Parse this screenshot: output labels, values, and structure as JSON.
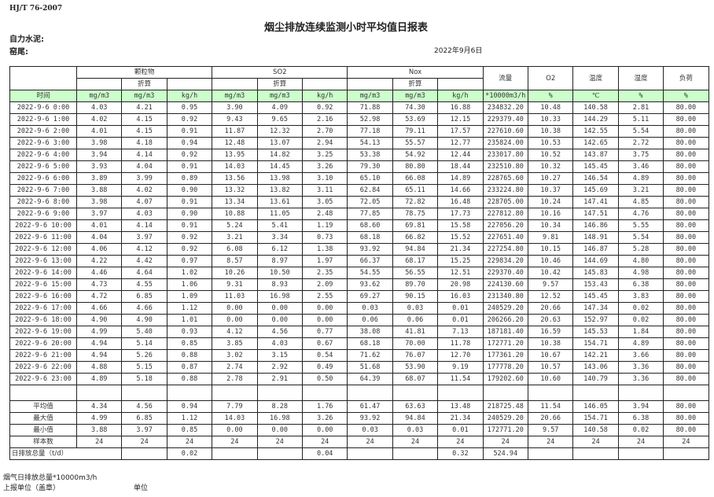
{
  "header": {
    "standard": "HJ/T  76-2007",
    "title": "烟尘排放连续监测小时平均值日报表",
    "company_label": "自力水泥:",
    "kiln_label": "窑尾:",
    "date": "2022年9月6日"
  },
  "table": {
    "groups": [
      "颗粒物",
      "SO2",
      "Nox"
    ],
    "converted_label": "折算",
    "single_columns": [
      "流量",
      "O2",
      "温度",
      "湿度",
      "负荷"
    ],
    "time_label": "时间",
    "units": [
      "mg/m3",
      "mg/m3",
      "kg/h",
      "mg/m3",
      "mg/m3",
      "kg/h",
      "mg/m3",
      "mg/m3",
      "kg/h",
      "*10000m3/h",
      "%",
      "℃",
      "%",
      "%"
    ],
    "rows": [
      [
        "2022-9-6 0:00",
        "4.03",
        "4.21",
        "0.95",
        "3.90",
        "4.09",
        "0.92",
        "71.88",
        "74.30",
        "16.88",
        "234832.20",
        "10.48",
        "140.58",
        "2.81",
        "80.00"
      ],
      [
        "2022-9-6 1:00",
        "4.02",
        "4.15",
        "0.92",
        "9.43",
        "9.65",
        "2.16",
        "52.98",
        "53.69",
        "12.15",
        "229379.40",
        "10.33",
        "144.29",
        "5.11",
        "80.00"
      ],
      [
        "2022-9-6 2:00",
        "4.01",
        "4.15",
        "0.91",
        "11.87",
        "12.32",
        "2.70",
        "77.18",
        "79.11",
        "17.57",
        "227610.60",
        "10.38",
        "142.55",
        "5.54",
        "80.00"
      ],
      [
        "2022-9-6 3:00",
        "3.98",
        "4.18",
        "0.94",
        "12.48",
        "13.07",
        "2.94",
        "54.13",
        "55.57",
        "12.77",
        "235824.00",
        "10.53",
        "142.65",
        "2.72",
        "80.00"
      ],
      [
        "2022-9-6 4:00",
        "3.94",
        "4.14",
        "0.92",
        "13.95",
        "14.82",
        "3.25",
        "53.38",
        "54.92",
        "12.44",
        "233017.80",
        "10.52",
        "143.87",
        "3.75",
        "80.00"
      ],
      [
        "2022-9-6 5:00",
        "3.93",
        "4.04",
        "0.91",
        "14.03",
        "14.45",
        "3.26",
        "79.30",
        "80.80",
        "18.44",
        "232510.80",
        "10.32",
        "145.45",
        "3.46",
        "80.00"
      ],
      [
        "2022-9-6 6:00",
        "3.89",
        "3.99",
        "0.89",
        "13.56",
        "13.98",
        "3.10",
        "65.10",
        "66.08",
        "14.89",
        "228765.60",
        "10.27",
        "146.54",
        "4.89",
        "80.00"
      ],
      [
        "2022-9-6 7:00",
        "3.88",
        "4.02",
        "0.90",
        "13.32",
        "13.82",
        "3.11",
        "62.84",
        "65.11",
        "14.66",
        "233224.80",
        "10.37",
        "145.69",
        "3.21",
        "80.00"
      ],
      [
        "2022-9-6 8:00",
        "3.98",
        "4.07",
        "0.91",
        "13.34",
        "13.61",
        "3.05",
        "72.05",
        "72.82",
        "16.48",
        "228705.00",
        "10.24",
        "147.41",
        "4.85",
        "80.00"
      ],
      [
        "2022-9-6 9:00",
        "3.97",
        "4.03",
        "0.90",
        "10.88",
        "11.05",
        "2.48",
        "77.85",
        "78.75",
        "17.73",
        "227812.80",
        "10.16",
        "147.51",
        "4.76",
        "80.00"
      ],
      [
        "2022-9-6 10:00",
        "4.01",
        "4.14",
        "0.91",
        "5.24",
        "5.41",
        "1.19",
        "68.60",
        "69.81",
        "15.58",
        "227056.20",
        "10.34",
        "146.86",
        "5.55",
        "80.00"
      ],
      [
        "2022-9-6 11:00",
        "4.04",
        "3.97",
        "0.92",
        "3.21",
        "3.34",
        "0.73",
        "68.18",
        "66.82",
        "15.52",
        "227651.40",
        "9.81",
        "148.91",
        "5.54",
        "80.00"
      ],
      [
        "2022-9-6 12:00",
        "4.06",
        "4.12",
        "0.92",
        "6.08",
        "6.12",
        "1.38",
        "93.92",
        "94.84",
        "21.34",
        "227254.80",
        "10.15",
        "146.87",
        "5.28",
        "80.00"
      ],
      [
        "2022-9-6 13:00",
        "4.22",
        "4.42",
        "0.97",
        "8.57",
        "8.97",
        "1.97",
        "66.37",
        "68.17",
        "15.25",
        "229834.20",
        "10.46",
        "144.69",
        "4.80",
        "80.00"
      ],
      [
        "2022-9-6 14:00",
        "4.46",
        "4.64",
        "1.02",
        "10.26",
        "10.50",
        "2.35",
        "54.55",
        "56.55",
        "12.51",
        "229370.40",
        "10.42",
        "145.83",
        "4.98",
        "80.00"
      ],
      [
        "2022-9-6 15:00",
        "4.73",
        "4.55",
        "1.06",
        "9.31",
        "8.93",
        "2.09",
        "93.62",
        "89.70",
        "20.98",
        "224130.60",
        "9.57",
        "153.43",
        "6.38",
        "80.00"
      ],
      [
        "2022-9-6 16:00",
        "4.72",
        "6.85",
        "1.09",
        "11.03",
        "16.98",
        "2.55",
        "69.27",
        "90.15",
        "16.03",
        "231340.80",
        "12.52",
        "145.45",
        "3.83",
        "80.00"
      ],
      [
        "2022-9-6 17:00",
        "4.66",
        "4.66",
        "1.12",
        "0.00",
        "0.00",
        "0.00",
        "0.03",
        "0.03",
        "0.01",
        "240529.20",
        "20.66",
        "147.34",
        "0.02",
        "80.00"
      ],
      [
        "2022-9-6 18:00",
        "4.90",
        "4.90",
        "1.01",
        "0.00",
        "0.00",
        "0.00",
        "0.06",
        "0.06",
        "0.01",
        "206266.20",
        "20.63",
        "152.97",
        "0.02",
        "80.00"
      ],
      [
        "2022-9-6 19:00",
        "4.99",
        "5.40",
        "0.93",
        "4.12",
        "4.56",
        "0.77",
        "38.08",
        "41.81",
        "7.13",
        "187181.40",
        "16.59",
        "145.53",
        "1.84",
        "80.00"
      ],
      [
        "2022-9-6 20:00",
        "4.94",
        "5.14",
        "0.85",
        "3.85",
        "4.03",
        "0.67",
        "68.18",
        "70.00",
        "11.78",
        "172771.20",
        "10.38",
        "154.71",
        "4.89",
        "80.00"
      ],
      [
        "2022-9-6 21:00",
        "4.94",
        "5.26",
        "0.88",
        "3.02",
        "3.15",
        "0.54",
        "71.62",
        "76.07",
        "12.70",
        "177361.20",
        "10.67",
        "142.21",
        "3.66",
        "80.00"
      ],
      [
        "2022-9-6 22:00",
        "4.88",
        "5.15",
        "0.87",
        "2.74",
        "2.92",
        "0.49",
        "51.68",
        "53.90",
        "9.19",
        "177778.20",
        "10.57",
        "143.06",
        "3.36",
        "80.00"
      ],
      [
        "2022-9-6 23:00",
        "4.89",
        "5.18",
        "0.88",
        "2.78",
        "2.91",
        "0.50",
        "64.39",
        "68.07",
        "11.54",
        "179202.60",
        "10.60",
        "140.79",
        "3.36",
        "80.00"
      ]
    ],
    "stats": [
      [
        "平均值",
        "4.34",
        "4.56",
        "0.94",
        "7.79",
        "8.28",
        "1.76",
        "61.47",
        "63.63",
        "13.48",
        "218725.48",
        "11.54",
        "146.05",
        "3.94",
        "80.00"
      ],
      [
        "最大值",
        "4.99",
        "6.85",
        "1.12",
        "14.03",
        "16.98",
        "3.26",
        "93.92",
        "94.84",
        "21.34",
        "240529.20",
        "20.66",
        "154.71",
        "6.38",
        "80.00"
      ],
      [
        "最小值",
        "3.88",
        "3.97",
        "0.85",
        "0.00",
        "0.00",
        "0.00",
        "0.03",
        "0.03",
        "0.01",
        "172771.20",
        "9.57",
        "140.58",
        "0.02",
        "80.00"
      ],
      [
        "样本数",
        "24",
        "24",
        "24",
        "24",
        "24",
        "24",
        "24",
        "24",
        "24",
        "24",
        "24",
        "24",
        "24",
        "24"
      ]
    ],
    "daily_total": {
      "label": "日排放总量（t/d）",
      "cells": [
        "",
        "0.02",
        "",
        "",
        "0.04",
        "",
        "",
        "0.32",
        "524.94",
        "",
        "",
        "",
        ""
      ]
    },
    "header_bg": "#ccffcc"
  },
  "footer": {
    "flue_gas_total": "烟气日排放总量*10000m3/h",
    "reporting_unit": "上报单位（盖章）",
    "unit": "单位"
  }
}
